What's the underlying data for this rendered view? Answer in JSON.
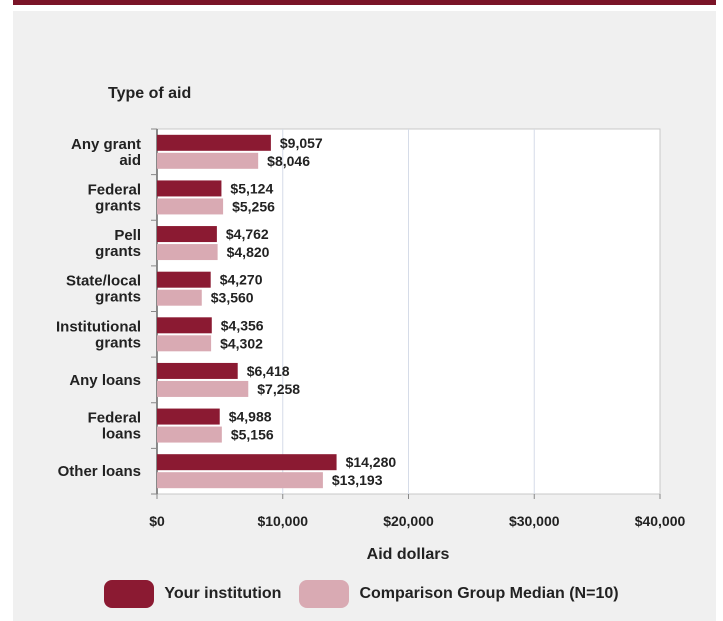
{
  "colors": {
    "institution": "#8b1a32",
    "comparison": "#d9aab3",
    "header_bar": "#7a1428"
  },
  "legend": {
    "institution_label": "Your institution",
    "comparison_label": "Comparison Group Median (N=10)"
  },
  "chart_data": {
    "type": "bar",
    "orientation": "horizontal",
    "title": "Type of aid",
    "xlabel": "Aid dollars",
    "ylabel": "",
    "xlim": [
      0,
      40000
    ],
    "xticks": [
      "$0",
      "$10,000",
      "$20,000",
      "$30,000",
      "$40,000"
    ],
    "grid": true,
    "legend_position": "bottom",
    "categories": [
      [
        "Any grant",
        "aid"
      ],
      [
        "Federal",
        "grants"
      ],
      [
        "Pell",
        "grants"
      ],
      [
        "State/local",
        "grants"
      ],
      [
        "Institutional",
        "grants"
      ],
      [
        "Any loans"
      ],
      [
        "Federal",
        "loans"
      ],
      [
        "Other loans"
      ]
    ],
    "series": [
      {
        "name": "Your institution",
        "values": [
          9057,
          5124,
          4762,
          4270,
          4356,
          6418,
          4988,
          14280
        ],
        "labels": [
          "$9,057",
          "$5,124",
          "$4,762",
          "$4,270",
          "$4,356",
          "$6,418",
          "$4,988",
          "$14,280"
        ]
      },
      {
        "name": "Comparison Group Median (N=10)",
        "values": [
          8046,
          5256,
          4820,
          3560,
          4302,
          7258,
          5156,
          13193
        ],
        "labels": [
          "$8,046",
          "$5,256",
          "$4,820",
          "$3,560",
          "$4,302",
          "$7,258",
          "$5,156",
          "$13,193"
        ]
      }
    ]
  }
}
